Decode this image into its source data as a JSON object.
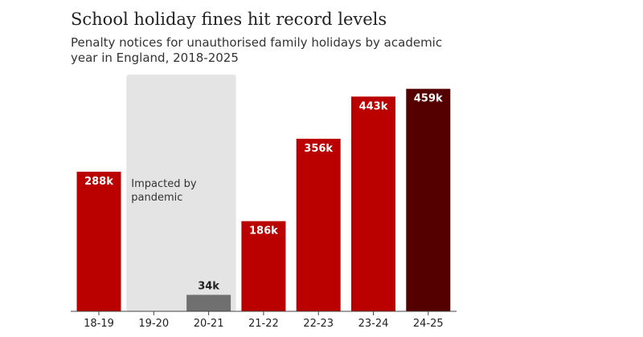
{
  "chart_data": {
    "type": "bar",
    "title": "School holiday fines hit record levels",
    "subtitle": "Penalty notices for unauthorised family holidays by academic year in England, 2018-2025",
    "xlabel": "",
    "ylabel": "",
    "ylim": [
      0,
      480
    ],
    "categories": [
      "18-19",
      "19-20",
      "20-21",
      "21-22",
      "22-23",
      "23-24",
      "24-25"
    ],
    "values": [
      288,
      null,
      34,
      186,
      356,
      443,
      459
    ],
    "data_labels": [
      "288k",
      "",
      "34k",
      "186k",
      "356k",
      "443k",
      "459k"
    ],
    "bar_colors": [
      "#bb0000",
      "#bb0000",
      "#707070",
      "#bb0000",
      "#bb0000",
      "#bb0000",
      "#550000"
    ],
    "label_inside": [
      true,
      false,
      false,
      true,
      true,
      true,
      true
    ],
    "annotation": {
      "text_lines": [
        "Impacted by",
        "pandemic"
      ],
      "categories": [
        "19-20",
        "20-21"
      ],
      "band_color": "#e4e4e4"
    },
    "grid": false,
    "legend": "none"
  }
}
